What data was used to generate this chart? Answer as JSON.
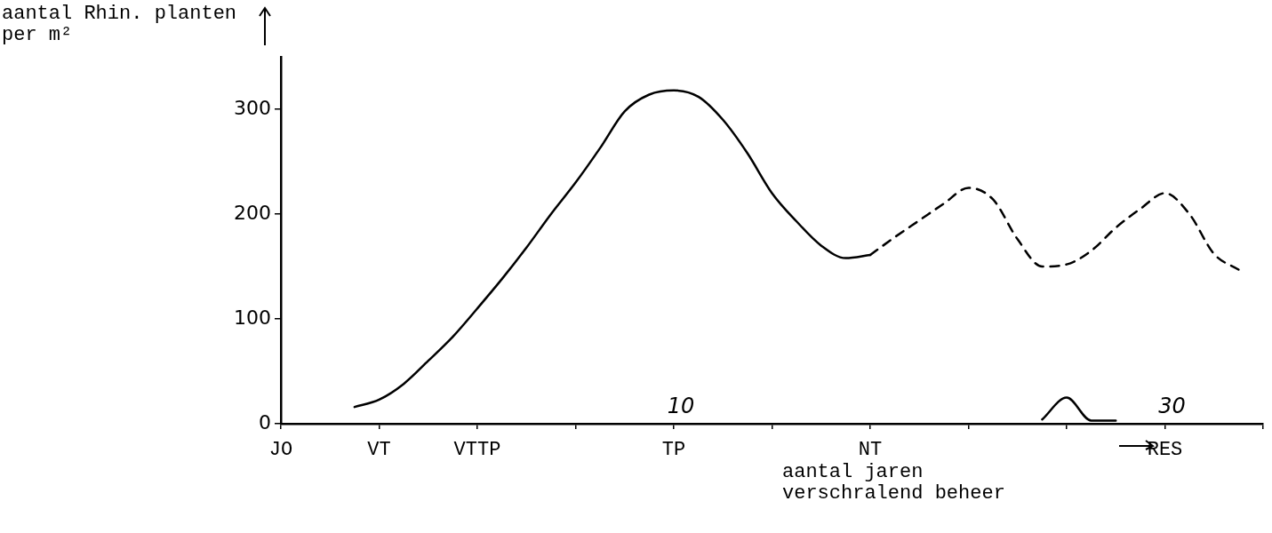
{
  "chart_data": {
    "type": "line",
    "ylabel": "aantal Rhin. planten per m²",
    "xlabel": "aantal jaren verschralend beheer",
    "categories": [
      "JO",
      null,
      null,
      null,
      "VT",
      null,
      null,
      null,
      "VTTP",
      null,
      null,
      null,
      null,
      null,
      null,
      null,
      "TP",
      null,
      null,
      null,
      null,
      null,
      null,
      null,
      "NT",
      null,
      null,
      null,
      null,
      null,
      null,
      null,
      null,
      null,
      null,
      null,
      "RES",
      null,
      null,
      null,
      null
    ],
    "ylim": [
      0,
      350
    ],
    "yticks": [
      0,
      100,
      200,
      300
    ],
    "series": [
      {
        "color": "#000000",
        "line_style": "solid",
        "values": [
          null,
          null,
          null,
          16,
          23,
          38,
          60,
          83,
          110,
          138,
          168,
          200,
          230,
          263,
          298,
          314,
          318,
          312,
          290,
          258,
          220,
          193,
          170,
          158,
          161,
          null,
          null,
          null,
          null,
          null,
          null,
          null,
          null,
          null,
          null,
          null,
          null,
          null,
          null,
          null,
          null
        ]
      },
      {
        "color": "#000000",
        "line_style": "dashed",
        "values": [
          null,
          null,
          null,
          null,
          null,
          null,
          null,
          null,
          null,
          null,
          null,
          null,
          null,
          null,
          null,
          null,
          null,
          null,
          null,
          null,
          null,
          null,
          null,
          null,
          161,
          178,
          194,
          210,
          225,
          214,
          176,
          150,
          152,
          165,
          187,
          205,
          220,
          200,
          162,
          147,
          null
        ]
      },
      {
        "color": "#000000",
        "line_style": "solid",
        "values": [
          null,
          null,
          null,
          null,
          null,
          null,
          null,
          null,
          null,
          null,
          null,
          null,
          null,
          null,
          null,
          null,
          null,
          null,
          null,
          null,
          null,
          null,
          null,
          null,
          null,
          null,
          null,
          null,
          null,
          null,
          null,
          4,
          25,
          3,
          3,
          null,
          null,
          null,
          null,
          null,
          null
        ]
      }
    ],
    "annotations": [
      "10",
      "30"
    ]
  }
}
